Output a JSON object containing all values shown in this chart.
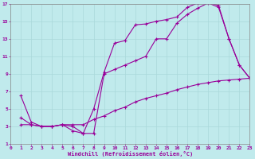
{
  "xlabel": "Windchill (Refroidissement éolien,°C)",
  "background_color": "#c0eaec",
  "grid_color": "#aad8da",
  "line_color": "#990099",
  "x_min": 0,
  "x_max": 23,
  "y_min": 1,
  "y_max": 17,
  "line1_x": [
    1,
    2,
    3,
    4,
    5,
    6,
    7,
    8,
    9,
    10,
    11,
    12,
    13,
    14,
    15,
    16,
    17,
    18,
    19,
    20,
    21,
    22,
    23
  ],
  "line1_y": [
    6.5,
    3.5,
    3.0,
    3.0,
    3.2,
    3.0,
    2.2,
    5.0,
    9.2,
    12.5,
    12.8,
    14.6,
    14.7,
    15.0,
    15.2,
    15.5,
    16.6,
    17.1,
    17.2,
    16.8,
    13.0,
    10.0,
    8.5
  ],
  "line2_x": [
    1,
    2,
    3,
    4,
    5,
    6,
    7,
    8,
    9,
    10,
    11,
    12,
    13,
    14,
    15,
    16,
    17,
    18,
    19,
    20,
    21,
    22,
    23
  ],
  "line2_y": [
    4.0,
    3.2,
    3.0,
    3.0,
    3.2,
    2.5,
    2.2,
    2.2,
    9.0,
    9.5,
    10.0,
    10.5,
    11.0,
    13.0,
    13.0,
    14.8,
    15.8,
    16.5,
    17.1,
    16.6,
    13.0,
    10.0,
    8.5
  ],
  "line3_x": [
    1,
    2,
    3,
    4,
    5,
    6,
    7,
    8,
    9,
    10,
    11,
    12,
    13,
    14,
    15,
    16,
    17,
    18,
    19,
    20,
    21,
    22,
    23
  ],
  "line3_y": [
    3.2,
    3.2,
    3.0,
    3.0,
    3.2,
    3.2,
    3.2,
    3.8,
    4.2,
    4.8,
    5.2,
    5.8,
    6.2,
    6.5,
    6.8,
    7.2,
    7.5,
    7.8,
    8.0,
    8.2,
    8.3,
    8.4,
    8.5
  ]
}
